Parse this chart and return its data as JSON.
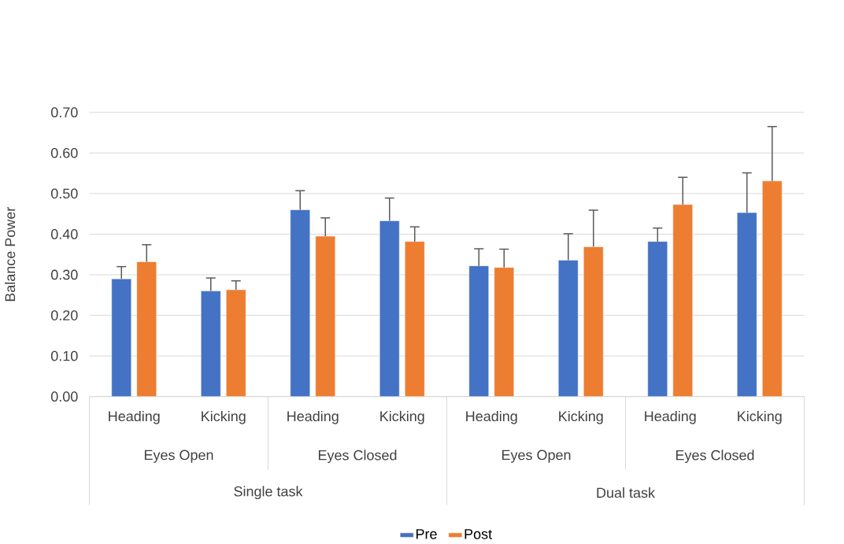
{
  "chart_data": {
    "type": "bar",
    "ylabel": "Balance Power",
    "categories": [
      "Heading",
      "Kicking",
      "Heading",
      "Kicking",
      "Heading",
      "Kicking",
      "Heading",
      "Kicking"
    ],
    "annotations": [
      "Eyes Open",
      "Eyes Closed",
      "Eyes Open",
      "Eyes Closed",
      "Single task",
      "Dual task"
    ],
    "series": [
      {
        "name": "Pre",
        "color": "#4472c4",
        "values": [
          0.29,
          0.26,
          0.46,
          0.433,
          0.322,
          0.336,
          0.382,
          0.453
        ],
        "errors": [
          [
            0.29,
            0.32
          ],
          [
            0.26,
            0.292
          ],
          [
            0.46,
            0.507
          ],
          [
            0.433,
            0.489
          ],
          [
            0.322,
            0.364
          ],
          [
            0.336,
            0.401
          ],
          [
            0.382,
            0.415
          ],
          [
            0.453,
            0.551
          ]
        ]
      },
      {
        "name": "Post",
        "color": "#ed7d31",
        "values": [
          0.332,
          0.263,
          0.395,
          0.382,
          0.318,
          0.369,
          0.473,
          0.531
        ],
        "errors": [
          [
            0.332,
            0.374
          ],
          [
            0.263,
            0.285
          ],
          [
            0.395,
            0.44
          ],
          [
            0.382,
            0.418
          ],
          [
            0.318,
            0.363
          ],
          [
            0.369,
            0.459
          ],
          [
            0.473,
            0.54
          ],
          [
            0.531,
            0.665
          ]
        ]
      }
    ],
    "ylim": [
      0,
      0.7
    ],
    "yticks": [
      {
        "value": 0,
        "label": "0.00"
      },
      {
        "value": 0.1,
        "label": "0.10"
      },
      {
        "value": 0.2,
        "label": "0.20"
      },
      {
        "value": 0.3,
        "label": "0.30"
      },
      {
        "value": 0.4,
        "label": "0.40"
      },
      {
        "value": 0.5,
        "label": "0.50"
      },
      {
        "value": 0.6,
        "label": "0.60"
      },
      {
        "value": 0.7,
        "label": "0.70"
      }
    ],
    "grid": "y",
    "legend": "bottom"
  }
}
